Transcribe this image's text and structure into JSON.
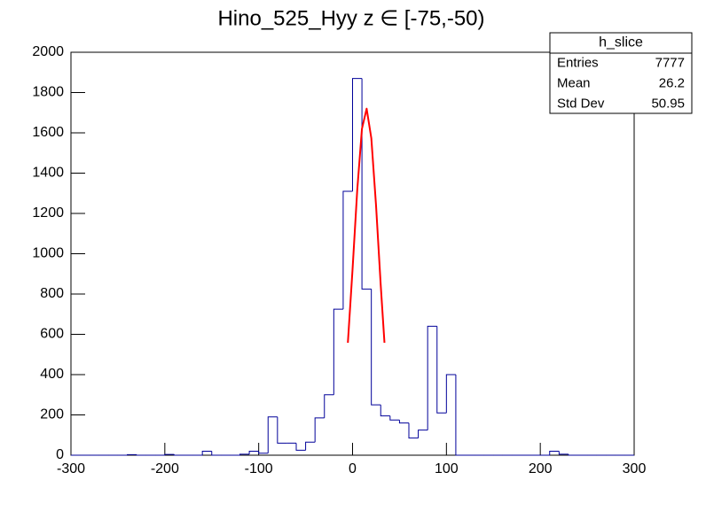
{
  "chart_data": {
    "type": "histogram",
    "title": "Hino_525_Hyy z  ∈ [-75,-50)",
    "bins": [
      -300,
      -290,
      -280,
      -270,
      -260,
      -250,
      -240,
      -230,
      -220,
      -210,
      -200,
      -190,
      -180,
      -170,
      -160,
      -150,
      -140,
      -130,
      -120,
      -110,
      -100,
      -90,
      -80,
      -70,
      -60,
      -50,
      -40,
      -30,
      -20,
      -10,
      0,
      10,
      20,
      30,
      40,
      50,
      60,
      70,
      80,
      90,
      100,
      110,
      120,
      130,
      140,
      150,
      160,
      170,
      180,
      190,
      200,
      210,
      220,
      230,
      240,
      250,
      260,
      270,
      280,
      290,
      300
    ],
    "counts": [
      0,
      0,
      0,
      0,
      0,
      0,
      3,
      0,
      0,
      0,
      4,
      0,
      0,
      0,
      20,
      0,
      0,
      0,
      5,
      20,
      10,
      190,
      60,
      60,
      25,
      65,
      185,
      300,
      725,
      1310,
      1870,
      825,
      250,
      195,
      175,
      160,
      85,
      125,
      640,
      210,
      400,
      0,
      0,
      0,
      0,
      0,
      0,
      0,
      0,
      0,
      0,
      20,
      5,
      0,
      0,
      0,
      0,
      0,
      0,
      0
    ],
    "color": "#000099",
    "fit": {
      "color": "#ff0000",
      "x": [
        -5,
        0,
        5,
        10,
        15,
        20,
        25,
        30,
        34
      ],
      "values": [
        558,
        923,
        1317,
        1620,
        1720,
        1573,
        1241,
        845,
        558
      ]
    },
    "xlim": [
      -300,
      300
    ],
    "xticks": [
      -300,
      -200,
      -100,
      0,
      100,
      200,
      300
    ],
    "ylim": [
      0,
      2000
    ],
    "yticks": [
      0,
      200,
      400,
      600,
      800,
      1000,
      1200,
      1400,
      1600,
      1800,
      2000
    ],
    "stats": {
      "name": "h_slice",
      "rows": [
        [
          "Entries",
          "7777"
        ],
        [
          "Mean",
          "26.2"
        ],
        [
          "Std Dev",
          "50.95"
        ]
      ]
    }
  }
}
